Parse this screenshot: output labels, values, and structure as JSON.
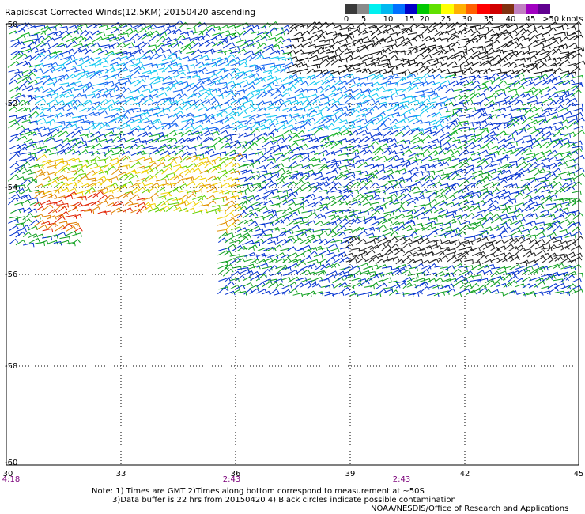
{
  "title": "Rapidscat Corrected Winds(12.5KM) 20150420 ascending",
  "legend": {
    "colors": [
      "#3a3a3a",
      "#8a8a8a",
      "#00f0f0",
      "#00b8f0",
      "#0070ff",
      "#0000c8",
      "#00c800",
      "#60e000",
      "#ffff00",
      "#ffb000",
      "#ff6000",
      "#ff0000",
      "#d00000",
      "#803010",
      "#c080c0",
      "#a000c0",
      "#600090"
    ],
    "ticks": [
      "0",
      "5",
      "10",
      "15",
      "20",
      "25",
      "30",
      "35",
      "40",
      "45"
    ],
    "units": ">50 knots"
  },
  "axes": {
    "lat_labels": [
      "-52",
      "-54",
      "-56",
      "-58",
      "-60"
    ],
    "lon_labels": [
      "30",
      "33",
      "36",
      "39",
      "42",
      "45"
    ],
    "top_left_label": "-50",
    "mid_label_1": "-52",
    "mid_label_2": "-54"
  },
  "times": [
    "4:18",
    "2:43",
    "2:43"
  ],
  "notes": {
    "line1": "Note: 1) Times are GMT 2)Times along bottom correspond to measurement at ~50S",
    "line2": "3)Data buffer is 22 hrs from 20150420 4) Black circles indicate possible contamination",
    "line3": "NOAA/NESDIS/Office of Research and Applications"
  }
}
